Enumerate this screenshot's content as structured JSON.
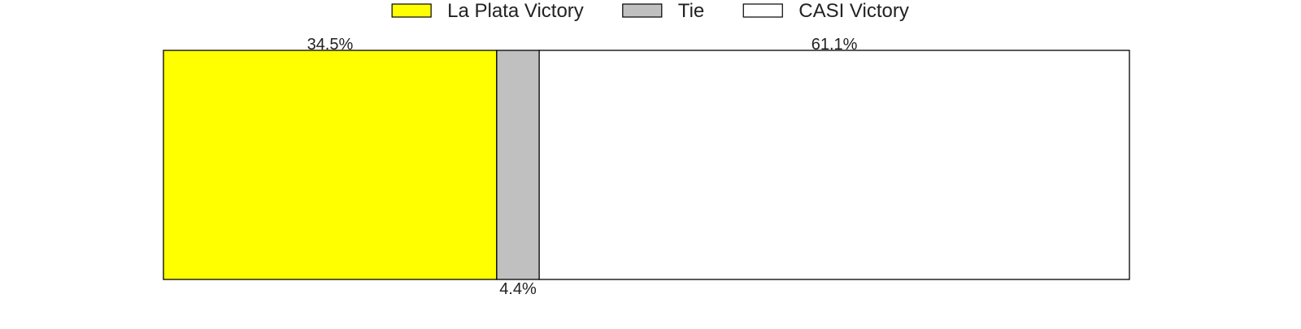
{
  "chart_data": {
    "type": "bar",
    "orientation": "horizontal",
    "stacked": true,
    "title": "",
    "xlabel": "",
    "ylabel": "",
    "xlim": [
      0,
      100
    ],
    "grid": false,
    "legend_position": "top-center",
    "series": [
      {
        "name": "La Plata Victory",
        "value": 34.5,
        "label": "34.5%",
        "color": "#ffff00",
        "label_position": "above"
      },
      {
        "name": "Tie",
        "value": 4.4,
        "label": "4.4%",
        "color": "#c0c0c0",
        "label_position": "below"
      },
      {
        "name": "CASI Victory",
        "value": 61.1,
        "label": "61.1%",
        "color": "#ffffff",
        "label_position": "above"
      }
    ],
    "edge_color": "#000000"
  }
}
